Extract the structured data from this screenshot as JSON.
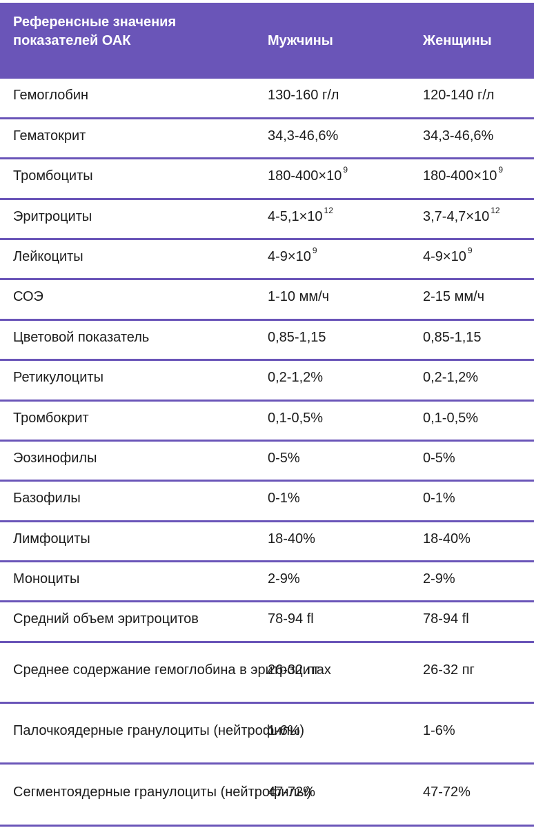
{
  "header": {
    "parameter": "Референсные значения показателей ОАК",
    "men": "Мужчины",
    "women": "Женщины"
  },
  "rows": [
    {
      "name": "Гемоглобин",
      "men": "130-160 г/л",
      "women": "120-140 г/л"
    },
    {
      "name": "Гематокрит",
      "men": "34,3-46,6%",
      "women": "34,3-46,6%"
    },
    {
      "name": "Тромбоциты",
      "men": "180-400×10",
      "men_exp": "9",
      "women": "180-400×10",
      "women_exp": "9"
    },
    {
      "name": "Эритроциты",
      "men": "4-5,1×10",
      "men_exp": "12",
      "women": "3,7-4,7×10",
      "women_exp": "12"
    },
    {
      "name": "Лейкоциты",
      "men": "4-9×10",
      "men_exp": "9",
      "women": "4-9×10",
      "women_exp": "9"
    },
    {
      "name": "СОЭ",
      "men": "1-10 мм/ч",
      "women": "2-15 мм/ч"
    },
    {
      "name": "Цветовой показатель",
      "men": "0,85-1,15",
      "women": "0,85-1,15"
    },
    {
      "name": "Ретикулоциты",
      "men": "0,2-1,2%",
      "women": "0,2-1,2%"
    },
    {
      "name": "Тромбокрит",
      "men": "0,1-0,5%",
      "women": "0,1-0,5%"
    },
    {
      "name": "Эозинофилы",
      "men": "0-5%",
      "women": "0-5%"
    },
    {
      "name": "Базофилы",
      "men": "0-1%",
      "women": "0-1%"
    },
    {
      "name": "Лимфоциты",
      "men": "18-40%",
      "women": "18-40%"
    },
    {
      "name": "Моноциты",
      "men": "2-9%",
      "women": "2-9%"
    },
    {
      "name": "Средний объем эритроцитов",
      "men": "78-94 fl",
      "women": "78-94 fl"
    },
    {
      "name": "Среднее содержание гемоглобина в эритроцитах",
      "men": "26-32 пг",
      "women": "26-32 пг"
    },
    {
      "name": "Палочкоядерные гранулоциты (нейтрофилы)",
      "men": "1-6%",
      "women": "1-6%"
    },
    {
      "name": "Сегментоядерные гранулоциты (нейтрофилы)",
      "men": "47-72%",
      "women": "47-72%"
    }
  ],
  "colors": {
    "header_bg": "#6a55b8",
    "divider": "#6a55b8"
  }
}
